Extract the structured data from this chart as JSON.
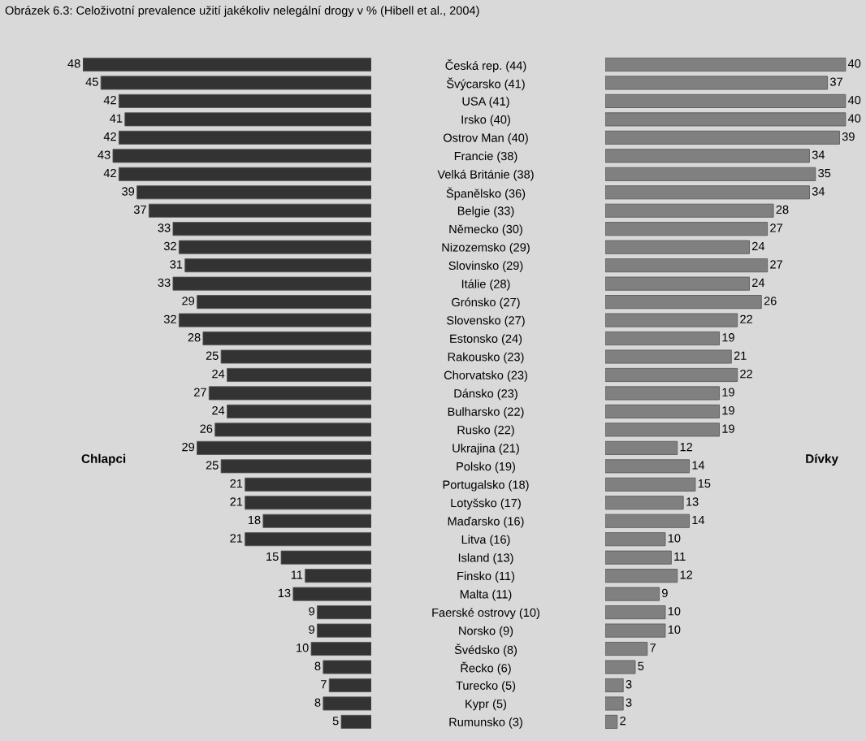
{
  "chart_data": [
    {
      "type": "bar",
      "orientation": "horizontal",
      "title": "Obrázek 6.3: Celoživotní prevalence užití jakékoliv nelegální drogy v % (Hibell et al., 2004)",
      "tick_labels": "y",
      "data_labels": true,
      "legend": false,
      "grid": false,
      "categories": [
        "Česká rep. (44)",
        "Švýcarsko (41)",
        "USA (41)",
        "Irsko (40)",
        "Ostrov Man (40)",
        "Francie (38)",
        "Velká Británie (38)",
        "Španělsko (36)",
        "Belgie (33)",
        "Německo (30)",
        "Nizozemsko (29)",
        "Slovinsko (29)",
        "Itálie (28)",
        "Grónsko (27)",
        "Slovensko (27)",
        "Estonsko (24)",
        "Rakousko (23)",
        "Chorvatsko (23)",
        "Dánsko (23)",
        "Bulharsko (22)",
        "Rusko (22)",
        "Ukrajina (21)",
        "Polsko (19)",
        "Portugalsko (18)",
        "Lotyšsko (17)",
        "Maďarsko (16)",
        "Litva (16)",
        "Island (13)",
        "Finsko (11)",
        "Malta (11)",
        "Faerské ostrovy (10)",
        "Norsko (9)",
        "Švédsko (8)",
        "Řecko (6)",
        "Turecko (5)",
        "Kypr (5)",
        "Rumunsko (3)"
      ],
      "series": [
        {
          "name": "Chlapci",
          "color": "#333333",
          "values": [
            48,
            45,
            42,
            41,
            42,
            43,
            42,
            39,
            37,
            33,
            32,
            31,
            33,
            29,
            32,
            28,
            25,
            24,
            27,
            24,
            26,
            29,
            25,
            21,
            21,
            18,
            21,
            15,
            11,
            13,
            9,
            9,
            10,
            8,
            7,
            8,
            5
          ]
        }
      ]
    },
    {
      "type": "bar",
      "orientation": "horizontal",
      "tick_labels": false,
      "data_labels": true,
      "legend": false,
      "grid": false,
      "categories": [
        null,
        null,
        null,
        null,
        null,
        null,
        null,
        null,
        null,
        null,
        null,
        null,
        null,
        null,
        null,
        null,
        null,
        null,
        null,
        null,
        null,
        null,
        null,
        null,
        null,
        null,
        null,
        null,
        null,
        null,
        null,
        null,
        null,
        null,
        null,
        null,
        null
      ],
      "series": [
        {
          "name": "Dívky",
          "color": "#808080",
          "values": [
            40,
            37,
            40,
            40,
            39,
            34,
            35,
            34,
            28,
            27,
            24,
            27,
            24,
            26,
            22,
            19,
            21,
            22,
            19,
            19,
            19,
            12,
            14,
            15,
            13,
            14,
            10,
            11,
            12,
            9,
            10,
            10,
            7,
            5,
            3,
            3,
            2
          ]
        }
      ]
    }
  ]
}
